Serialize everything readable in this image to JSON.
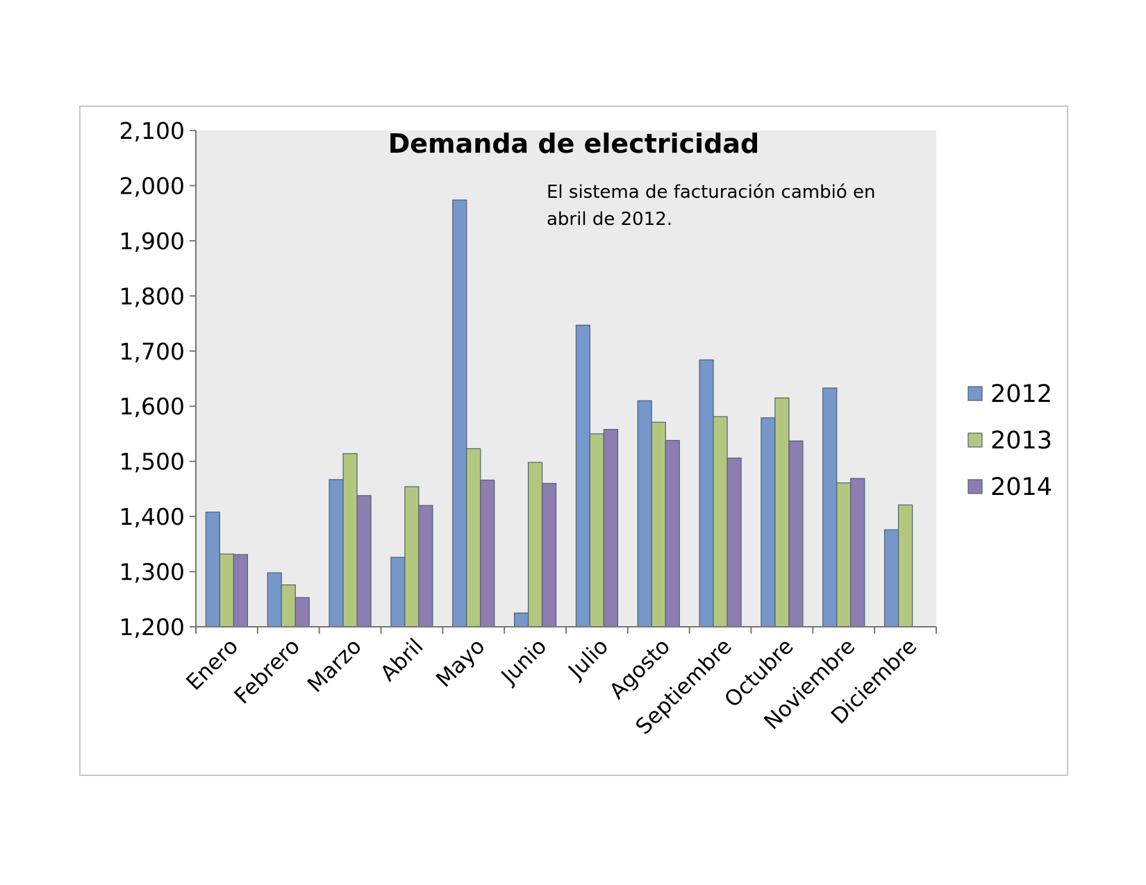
{
  "chart_data": {
    "type": "bar",
    "title": "Demanda de electricidad",
    "annotation": [
      "El sistema de facturación cambió en",
      "abril de 2012."
    ],
    "categories": [
      "Enero",
      "Febrero",
      "Marzo",
      "Abril",
      "Mayo",
      "Junio",
      "Julio",
      "Agosto",
      "Septiembre",
      "Octubre",
      "Noviembre",
      "Diciembre"
    ],
    "series": [
      {
        "name": "2012",
        "color": "#7597c9",
        "values": [
          1408,
          1298,
          1467,
          1326,
          1974,
          1225,
          1747,
          1610,
          1684,
          1579,
          1633,
          1376
        ]
      },
      {
        "name": "2013",
        "color": "#b4c77f",
        "values": [
          1332,
          1276,
          1514,
          1454,
          1523,
          1498,
          1550,
          1571,
          1581,
          1615,
          1461,
          1421
        ]
      },
      {
        "name": "2014",
        "color": "#8d7db0",
        "values": [
          1331,
          1253,
          1438,
          1420,
          1466,
          1460,
          1558,
          1538,
          1506,
          1537,
          1469,
          null
        ]
      }
    ],
    "ylim": [
      1200,
      2100
    ],
    "yticks": [
      "1,200",
      "1,300",
      "1,400",
      "1,500",
      "1,600",
      "1,700",
      "1,800",
      "1,900",
      "2,000",
      "2,100"
    ],
    "xlabel": "",
    "ylabel": "",
    "legend_position": "right",
    "plot_background": "#ebebeb",
    "grid": false
  }
}
